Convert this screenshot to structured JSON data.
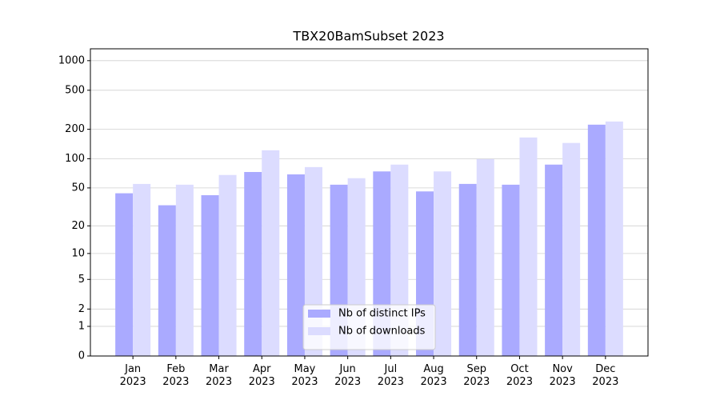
{
  "chart_data": {
    "type": "bar",
    "title": "TBX20BamSubset 2023",
    "categories": [
      "Jan 2023",
      "Feb 2023",
      "Mar 2023",
      "Apr 2023",
      "May 2023",
      "Jun 2023",
      "Jul 2023",
      "Aug 2023",
      "Sep 2023",
      "Oct 2023",
      "Nov 2023",
      "Dec 2023"
    ],
    "series": [
      {
        "name": "Nb of distinct IPs",
        "color": "#aaaaff",
        "values": [
          44,
          33,
          42,
          73,
          69,
          54,
          74,
          46,
          55,
          54,
          87,
          223
        ]
      },
      {
        "name": "Nb of downloads",
        "color": "#dcdcff",
        "values": [
          55,
          54,
          68,
          122,
          82,
          63,
          87,
          74,
          99,
          165,
          145,
          240
        ]
      }
    ],
    "yscale": "log1p",
    "ylim": [
      0,
      1320
    ],
    "yticks": [
      0,
      1,
      2,
      5,
      10,
      20,
      50,
      100,
      200,
      500,
      1000
    ],
    "grid": true,
    "legend": "lower center"
  }
}
